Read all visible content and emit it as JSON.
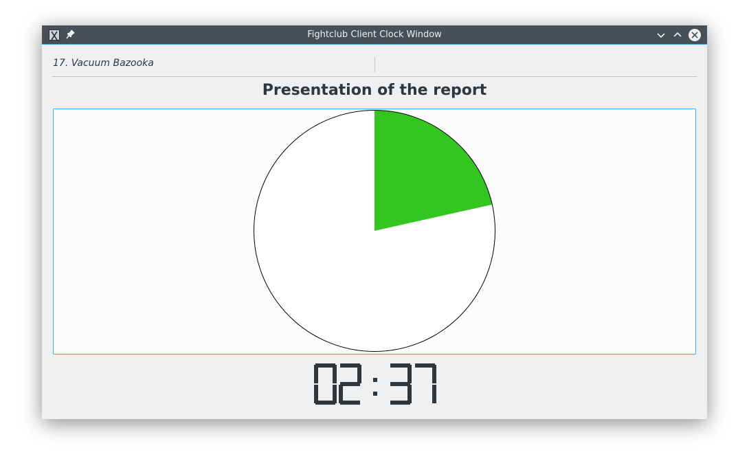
{
  "window": {
    "title": "Fightclub Client Clock Window"
  },
  "info": {
    "topic": "17. Vacuum Bazooka"
  },
  "section": {
    "title": "Presentation of the report"
  },
  "chart_data": {
    "type": "pie",
    "elapsed_fraction": 0.215,
    "colors": {
      "elapsed": "#33c61f",
      "remaining": "#ffffff",
      "outline": "#000000"
    }
  },
  "timer": {
    "display": "02:37",
    "color": "#31363b"
  },
  "icons": {
    "app": "app-icon",
    "pin": "pin-icon",
    "minimize": "chevron-down-icon",
    "maximize": "chevron-up-icon",
    "close": "close-icon"
  }
}
